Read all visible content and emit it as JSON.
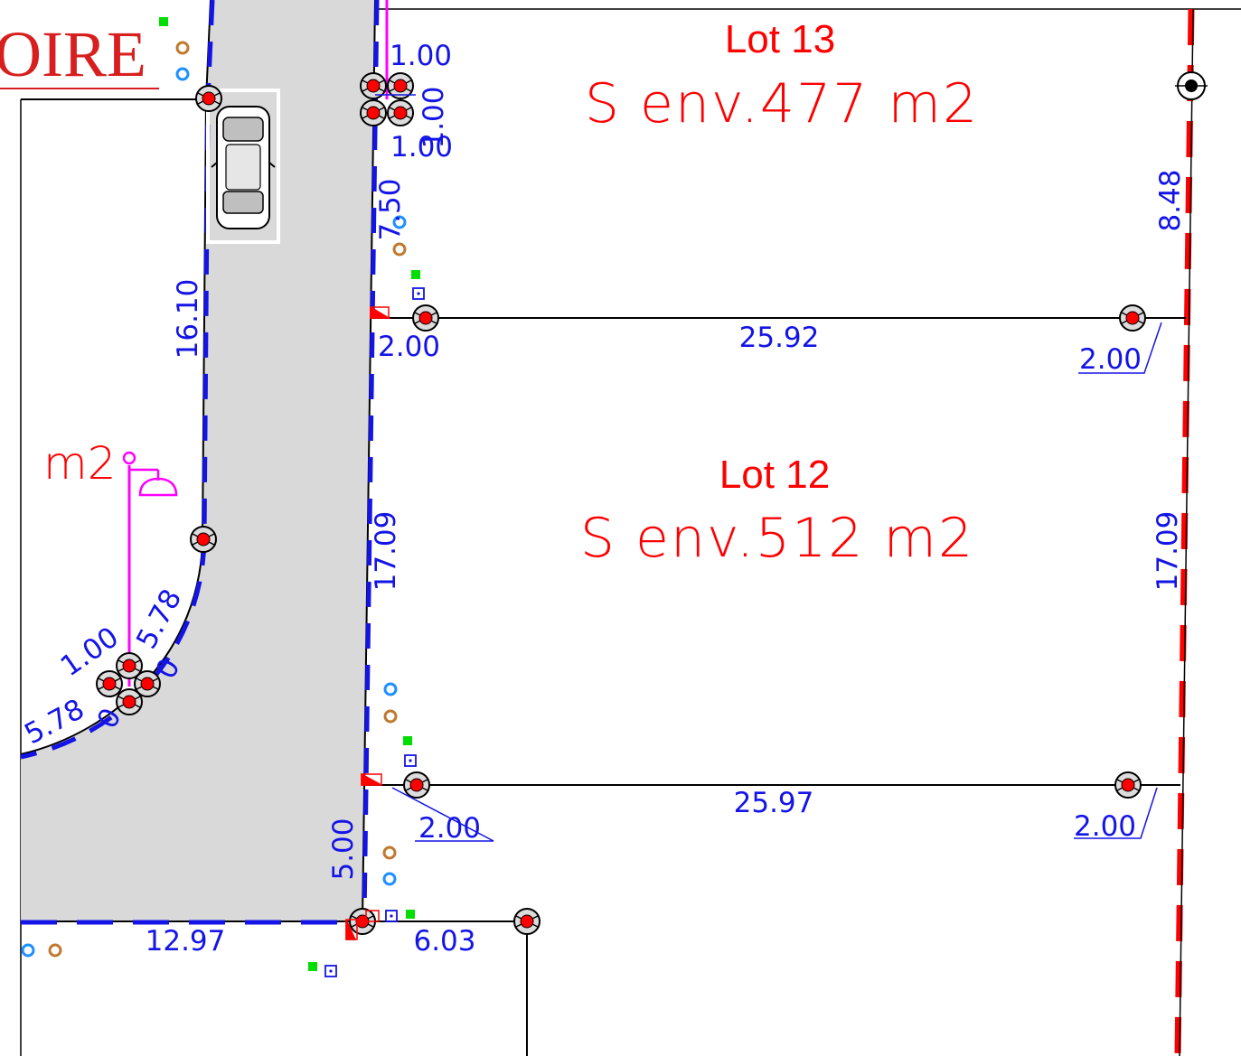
{
  "plan": {
    "header_fragment": "OIRE",
    "area_fragment": "m2",
    "lots": [
      {
        "title": "Lot 13",
        "area": "S  env.477  m2"
      },
      {
        "title": "Lot 12",
        "area": "S  env.512  m2"
      }
    ],
    "dimensions": {
      "d1": "1.00",
      "d2": "1.00",
      "d3": "1.00",
      "d4": "7.50",
      "d5": "8.48",
      "d6": "25.92",
      "d7": "2.00",
      "d8": "2.00",
      "d9": "16.10",
      "d10": "17.09",
      "d11": "17.09",
      "d12": "5.78",
      "d13": "1.00",
      "d14": "5.78",
      "d15": "0",
      "d16": "0",
      "d17": "25.97",
      "d18": "2.00",
      "d19": "2.00",
      "d20": "5.00",
      "d21": "12.97",
      "d22": "6.03"
    },
    "colors": {
      "road_fill": "#d9d9d9",
      "dim_text": "#1414e6",
      "lot_text": "#ff0000",
      "boundary_red": "#ff0000",
      "boundary_blue": "#1414e6",
      "network_magenta": "#ff00ff"
    }
  }
}
